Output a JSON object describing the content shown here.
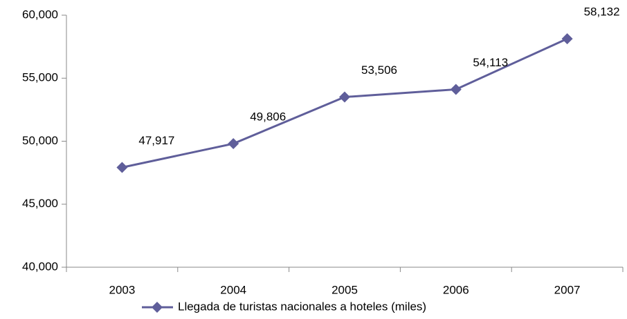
{
  "chart_data": {
    "type": "line",
    "categories": [
      "2003",
      "2004",
      "2005",
      "2006",
      "2007"
    ],
    "series": [
      {
        "name": "Llegada de turistas nacionales a hoteles (miles)",
        "color": "#5f5e9a",
        "values": [
          47917,
          49806,
          53506,
          54113,
          58132
        ],
        "value_labels": [
          "47,917",
          "49,806",
          "53,506",
          "54,113",
          "58,132"
        ]
      }
    ],
    "ylim": [
      40000,
      60000
    ],
    "yticks": [
      {
        "value": 40000,
        "label": "40,000"
      },
      {
        "value": 45000,
        "label": "45,000"
      },
      {
        "value": 50000,
        "label": "50,000"
      },
      {
        "value": 55000,
        "label": "55,000"
      },
      {
        "value": 60000,
        "label": "60,000"
      }
    ],
    "legend": "bottom"
  }
}
